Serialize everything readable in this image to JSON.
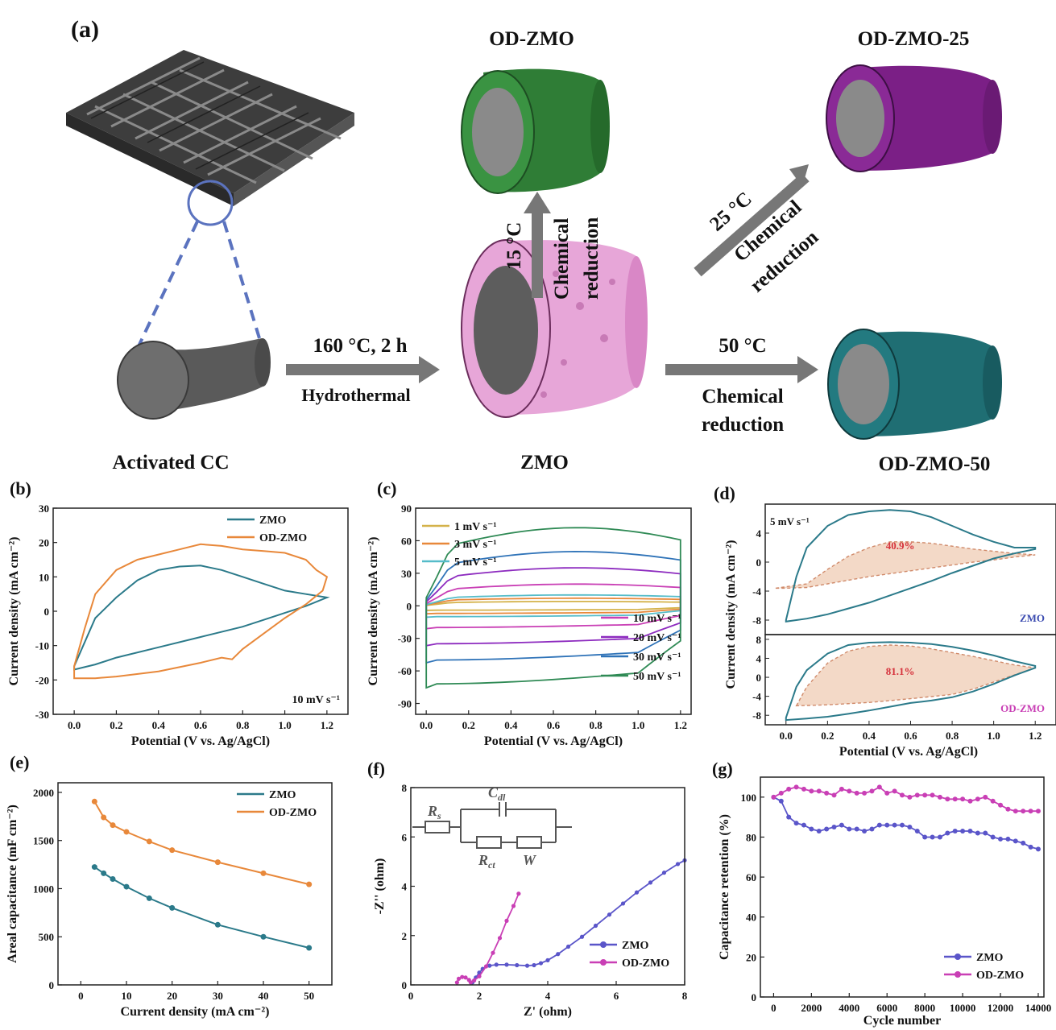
{
  "panel_labels": {
    "a": "(a)",
    "b": "(b)",
    "c": "(c)",
    "d": "(d)",
    "e": "(e)",
    "f": "(f)",
    "g": "(g)"
  },
  "schematic": {
    "activated_cc": "Activated CC",
    "zmo": "ZMO",
    "od_zmo": "OD-ZMO",
    "od_zmo_25": "OD-ZMO-25",
    "od_zmo_50": "OD-ZMO-50",
    "hydro_temp": "160 °C, 2 h",
    "hydro_label": "Hydrothermal",
    "temp_15": "15 °C",
    "temp_25": "25 °C",
    "temp_50": "50 °C",
    "chem_1": "Chemical",
    "chem_2": "reduction",
    "colors": {
      "cloth": "#4a4a4a",
      "zmo": "#e7a6d8",
      "od_zmo": "#2f7d36",
      "od_zmo_25": "#7b1f86",
      "od_zmo_50": "#1f6e73",
      "core": "#8c8c8c",
      "arrow": "#777777",
      "zoom": "#5b73bf"
    }
  },
  "chart_data": [
    {
      "id": "b",
      "type": "line",
      "xlabel": "Potential (V vs. Ag/AgCl)",
      "ylabel": "Current density (mA cm⁻²)",
      "xlim": [
        -0.1,
        1.3
      ],
      "ylim": [
        -30,
        30
      ],
      "xticks": [
        "0.0",
        "0.2",
        "0.4",
        "0.6",
        "0.8",
        "1.0",
        "1.2"
      ],
      "yticks": [
        "-30",
        "-20",
        "-10",
        "0",
        "10",
        "20",
        "30"
      ],
      "annotation": "10 mV s⁻¹",
      "legend": {
        "position": "top-right"
      },
      "series": [
        {
          "name": "ZMO",
          "color": "#2b7a8a",
          "closed": true,
          "x": [
            0,
            0.1,
            0.2,
            0.3,
            0.4,
            0.5,
            0.6,
            0.7,
            0.8,
            0.9,
            1.0,
            1.1,
            1.2,
            1.2,
            1.1,
            1.0,
            0.9,
            0.8,
            0.6,
            0.4,
            0.2,
            0.1,
            0.0
          ],
          "y": [
            -16,
            -2,
            4,
            9,
            12,
            13,
            13.3,
            12,
            10,
            8,
            6,
            5,
            4,
            4,
            1.5,
            -0.5,
            -2.5,
            -4.5,
            -7.5,
            -10.5,
            -13.5,
            -15.5,
            -17
          ]
        },
        {
          "name": "OD-ZMO",
          "color": "#e8883a",
          "closed": true,
          "x": [
            0,
            0.05,
            0.1,
            0.2,
            0.3,
            0.4,
            0.5,
            0.6,
            0.7,
            0.8,
            0.9,
            1.0,
            1.1,
            1.15,
            1.2,
            1.18,
            1.1,
            1.0,
            0.9,
            0.8,
            0.75,
            0.7,
            0.6,
            0.4,
            0.2,
            0.1,
            0.0
          ],
          "y": [
            -16,
            -5,
            5,
            12,
            15,
            16.5,
            18,
            19.5,
            19,
            18,
            17.5,
            17,
            15,
            12,
            10,
            6,
            2,
            -2,
            -6.5,
            -11,
            -14,
            -13.5,
            -15,
            -17.5,
            -19,
            -19.5,
            -19.5
          ]
        }
      ]
    },
    {
      "id": "c",
      "type": "line",
      "xlabel": "Potential (V vs. Ag/AgCl)",
      "ylabel": "Current density (mA cm⁻²)",
      "xlim": [
        -0.05,
        1.25
      ],
      "ylim": [
        -100,
        90
      ],
      "xticks": [
        "0.0",
        "0.2",
        "0.4",
        "0.6",
        "0.8",
        "1.0",
        "1.2"
      ],
      "yticks": [
        "-90",
        "-60",
        "-30",
        "0",
        "30",
        "60",
        "90"
      ],
      "legend": {
        "position": "top-left and bottom-right"
      },
      "series": [
        {
          "name": "1 mV s⁻¹",
          "color": "#d4b24a",
          "amp": 4
        },
        {
          "name": "3 mV s⁻¹",
          "color": "#e8883a",
          "amp": 7
        },
        {
          "name": "5 mV s⁻¹",
          "color": "#55bcc9",
          "amp": 10
        },
        {
          "name": "10 mV s⁻¹",
          "color": "#c93fb5",
          "amp": 20
        },
        {
          "name": "20 mV s⁻¹",
          "color": "#8d2bbf",
          "amp": 35
        },
        {
          "name": "30 mV s⁻¹",
          "color": "#2f73b8",
          "amp": 50
        },
        {
          "name": "50 mV s⁻¹",
          "color": "#2f8a55",
          "amp": 72
        }
      ]
    },
    {
      "id": "d",
      "type": "area",
      "xlabel": "Potential (V vs. Ag/AgCl)",
      "ylabel": "Current density (mA cm⁻²)",
      "xlim": [
        -0.1,
        1.3
      ],
      "ylim": [
        -10,
        8
      ],
      "xticks": [
        "0.0",
        "0.2",
        "0.4",
        "0.6",
        "0.8",
        "1.0",
        "1.2"
      ],
      "yticks": [
        "-8",
        "-4",
        "0",
        "4",
        "8"
      ],
      "annotation": "5 mV s⁻¹",
      "subpanels": [
        {
          "label": "ZMO",
          "label_color": "#3b4bb0",
          "percent": "40.9%",
          "fill": "#f3d9c7",
          "percent_color": "#d6323c",
          "x": [
            0,
            0.05,
            0.1,
            0.2,
            0.3,
            0.4,
            0.5,
            0.6,
            0.7,
            0.8,
            0.9,
            1.0,
            1.1,
            1.2,
            1.2,
            1.1,
            1.0,
            0.9,
            0.8,
            0.7,
            0.6,
            0.5,
            0.4,
            0.3,
            0.2,
            0.1,
            0.0
          ],
          "y": [
            -8,
            -2,
            2,
            5,
            6.5,
            7,
            7.2,
            7,
            6.2,
            5,
            3.8,
            2.8,
            2,
            2,
            1.8,
            1.2,
            0.5,
            -0.5,
            -1.5,
            -2.6,
            -3.6,
            -4.6,
            -5.6,
            -6.4,
            -7.2,
            -7.8,
            -8.2
          ],
          "inner_x": [
            -0.05,
            0.1,
            0.2,
            0.3,
            0.4,
            0.5,
            0.6,
            0.7,
            0.8,
            0.9,
            1.0,
            1.1,
            1.2,
            1.1,
            1.0,
            0.9,
            0.8,
            0.6,
            0.4,
            0.2,
            0.1,
            0.0
          ],
          "inner_y": [
            -3.6,
            -3,
            -1,
            0.8,
            2,
            2.8,
            2.8,
            2.6,
            2.2,
            1.8,
            1.5,
            1.2,
            1,
            0.7,
            0.3,
            0,
            -0.4,
            -1.2,
            -2,
            -3,
            -3.5,
            -3.6
          ]
        },
        {
          "label": "OD-ZMO",
          "label_color": "#c93fb5",
          "percent": "81.1%",
          "fill": "#f3d9c7",
          "percent_color": "#d6323c",
          "x": [
            0,
            0.05,
            0.1,
            0.2,
            0.3,
            0.4,
            0.5,
            0.6,
            0.7,
            0.8,
            0.9,
            1.0,
            1.1,
            1.2,
            1.2,
            1.1,
            1.0,
            0.9,
            0.8,
            0.7,
            0.6,
            0.5,
            0.4,
            0.3,
            0.2,
            0.1,
            0.0
          ],
          "y": [
            -8.5,
            -2,
            1.5,
            5,
            6.8,
            7.3,
            7.4,
            7.3,
            7,
            6.4,
            5.6,
            4.6,
            3.4,
            2.4,
            2,
            0.4,
            -1.4,
            -3,
            -4.2,
            -4.9,
            -5.4,
            -6.2,
            -7,
            -7.7,
            -8.3,
            -8.7,
            -9
          ],
          "inner_x": [
            0.05,
            0.1,
            0.2,
            0.3,
            0.4,
            0.5,
            0.6,
            0.7,
            0.8,
            0.9,
            1.0,
            1.1,
            1.2,
            1.1,
            1.0,
            0.9,
            0.8,
            0.6,
            0.4,
            0.2,
            0.05
          ],
          "inner_y": [
            -6,
            -2,
            3,
            5.5,
            6.5,
            6.8,
            6.6,
            6,
            5.2,
            4.4,
            3.5,
            2.6,
            2,
            0.5,
            -1,
            -2.5,
            -3.6,
            -4.5,
            -5.3,
            -5.8,
            -6
          ]
        }
      ]
    },
    {
      "id": "e",
      "type": "line",
      "xlabel": "Current density (mA cm⁻²)",
      "ylabel": "Areal capacitance (mF cm⁻²)",
      "xlim": [
        -5,
        55
      ],
      "ylim": [
        0,
        2100
      ],
      "xticks": [
        "0",
        "10",
        "20",
        "30",
        "40",
        "50"
      ],
      "yticks": [
        "0",
        "500",
        "1000",
        "1500",
        "2000"
      ],
      "legend": {
        "position": "top-right"
      },
      "series": [
        {
          "name": "ZMO",
          "color": "#2b7a8a",
          "x": [
            3,
            5,
            7,
            10,
            15,
            20,
            30,
            40,
            50
          ],
          "y": [
            1225,
            1160,
            1100,
            1020,
            900,
            800,
            625,
            500,
            385
          ]
        },
        {
          "name": "OD-ZMO",
          "color": "#e8883a",
          "x": [
            3,
            5,
            7,
            10,
            15,
            20,
            30,
            40,
            50
          ],
          "y": [
            1905,
            1740,
            1660,
            1590,
            1490,
            1400,
            1275,
            1160,
            1045
          ]
        }
      ]
    },
    {
      "id": "f",
      "type": "scatter",
      "xlabel": "Z' (ohm)",
      "ylabel": "-Z'' (ohm)",
      "xlim": [
        0,
        8
      ],
      "ylim": [
        0,
        8
      ],
      "xticks": [
        "0",
        "2",
        "4",
        "6",
        "8"
      ],
      "yticks": [
        "0",
        "2",
        "4",
        "6",
        "8"
      ],
      "legend": {
        "position": "bottom-right"
      },
      "circuit": {
        "rs": "R",
        "rs_sub": "s",
        "cdl": "C",
        "cdl_sub": "dl",
        "rct": "R",
        "rct_sub": "ct",
        "w": "W"
      },
      "series": [
        {
          "name": "ZMO",
          "color": "#5a55c9",
          "x": [
            1.8,
            1.9,
            2.0,
            2.1,
            2.3,
            2.5,
            2.8,
            3.1,
            3.4,
            3.6,
            3.8,
            4.0,
            4.3,
            4.6,
            5.0,
            5.4,
            5.8,
            6.2,
            6.6,
            7.0,
            7.4,
            7.8,
            8.0
          ],
          "y": [
            0.1,
            0.3,
            0.5,
            0.65,
            0.78,
            0.82,
            0.82,
            0.8,
            0.78,
            0.8,
            0.88,
            1.0,
            1.25,
            1.55,
            1.95,
            2.4,
            2.85,
            3.3,
            3.75,
            4.15,
            4.55,
            4.9,
            5.05
          ]
        },
        {
          "name": "OD-ZMO",
          "color": "#c93fb5",
          "x": [
            1.35,
            1.4,
            1.5,
            1.6,
            1.7,
            1.75,
            1.85,
            2.0,
            2.2,
            2.4,
            2.6,
            2.8,
            3.0,
            3.15
          ],
          "y": [
            0.1,
            0.25,
            0.32,
            0.3,
            0.2,
            0.1,
            0.18,
            0.35,
            0.75,
            1.3,
            1.9,
            2.6,
            3.2,
            3.7
          ]
        }
      ]
    },
    {
      "id": "g",
      "type": "line",
      "xlabel": "Cycle number",
      "ylabel": "Capacitance retention (%)",
      "xlim": [
        -700,
        14300
      ],
      "ylim": [
        0,
        110
      ],
      "xticks": [
        "0",
        "2000",
        "4000",
        "6000",
        "8000",
        "10000",
        "12000",
        "14000"
      ],
      "yticks": [
        "0",
        "20",
        "40",
        "60",
        "80",
        "100"
      ],
      "legend": {
        "position": "bottom-right"
      },
      "series": [
        {
          "name": "ZMO",
          "color": "#5a55c9",
          "x": [
            0,
            400,
            800,
            1200,
            1600,
            2000,
            2400,
            2800,
            3200,
            3600,
            4000,
            4400,
            4800,
            5200,
            5600,
            6000,
            6400,
            6800,
            7200,
            7600,
            8000,
            8400,
            8800,
            9200,
            9600,
            10000,
            10400,
            10800,
            11200,
            11600,
            12000,
            12400,
            12800,
            13200,
            13600,
            14000
          ],
          "y": [
            100,
            98,
            90,
            87,
            86,
            84,
            83,
            84,
            85,
            86,
            84,
            84,
            83,
            84,
            86,
            86,
            86,
            86,
            85,
            83,
            80,
            80,
            80,
            82,
            83,
            83,
            83,
            82,
            82,
            80,
            79,
            79,
            78,
            77,
            75,
            74
          ]
        },
        {
          "name": "OD-ZMO",
          "color": "#c93fb5",
          "x": [
            0,
            400,
            800,
            1200,
            1600,
            2000,
            2400,
            2800,
            3200,
            3600,
            4000,
            4400,
            4800,
            5200,
            5600,
            6000,
            6400,
            6800,
            7200,
            7600,
            8000,
            8400,
            8800,
            9200,
            9600,
            10000,
            10400,
            10800,
            11200,
            11600,
            12000,
            12400,
            12800,
            13200,
            13600,
            14000
          ],
          "y": [
            100,
            102,
            104,
            105,
            104,
            103,
            103,
            102,
            101,
            104,
            103,
            102,
            102,
            103,
            105,
            102,
            103,
            101,
            100,
            101,
            101,
            101,
            100,
            99,
            99,
            99,
            98,
            99,
            100,
            98,
            96,
            94,
            93,
            93,
            93,
            93
          ]
        }
      ]
    }
  ]
}
